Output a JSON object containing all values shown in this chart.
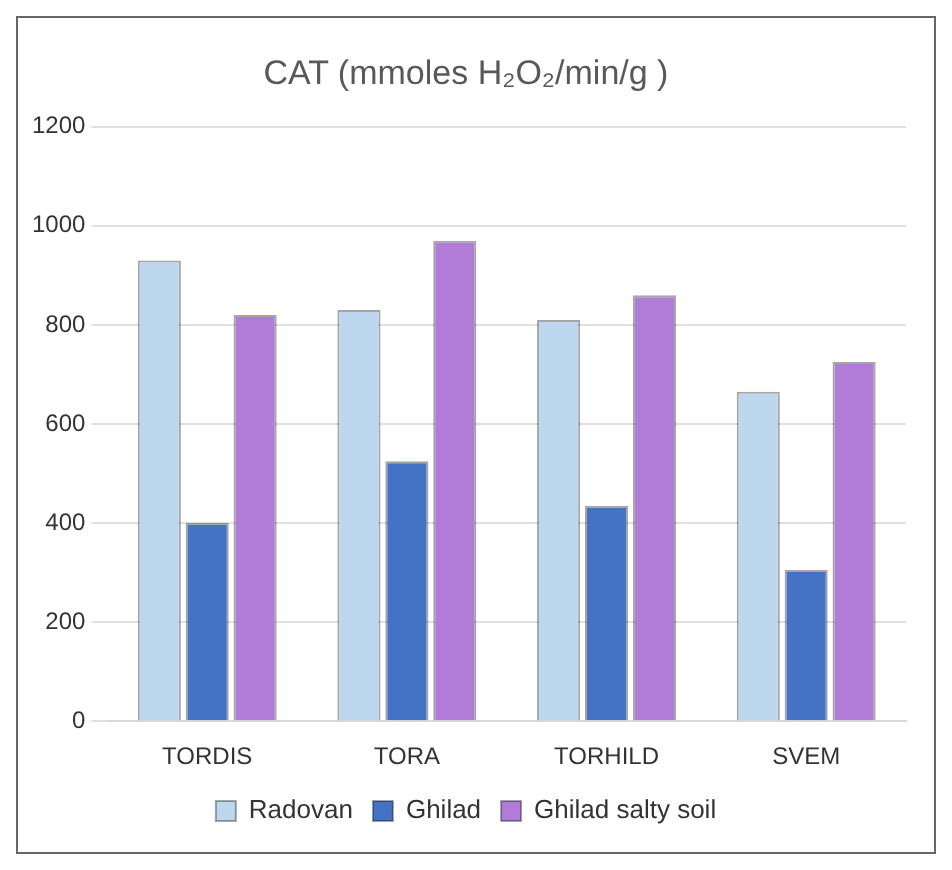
{
  "chart_data": {
    "type": "bar",
    "title": "CAT (mmoles H₂O₂/min/g )",
    "categories": [
      "TORDIS",
      "TORA",
      "TORHILD",
      "SVEM"
    ],
    "series": [
      {
        "name": "Radovan",
        "color": "#bdd7ee",
        "values": [
          930,
          830,
          810,
          665
        ]
      },
      {
        "name": "Ghilad",
        "color": "#4472c4",
        "values": [
          400,
          525,
          435,
          305
        ]
      },
      {
        "name": "Ghilad salty soil",
        "color": "#b07cd8",
        "values": [
          820,
          970,
          860,
          725
        ]
      }
    ],
    "ylim": [
      0,
      1200
    ],
    "yticks": [
      0,
      200,
      400,
      600,
      800,
      1000,
      1200
    ],
    "grid": "y",
    "legend": "bottom"
  }
}
